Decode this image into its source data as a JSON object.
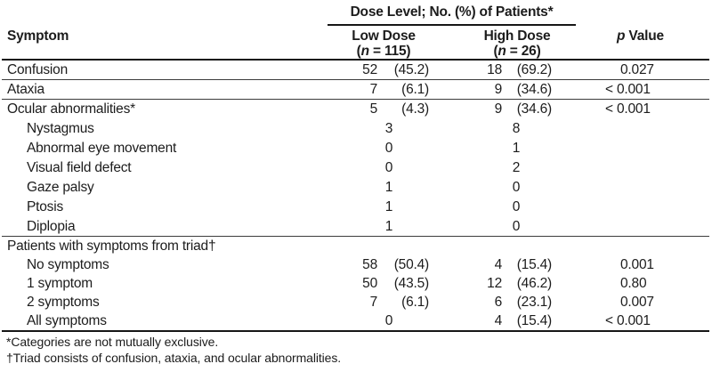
{
  "table": {
    "spanner": "Dose Level; No. (%) of Patients*",
    "col_symptom": "Symptom",
    "low_header": {
      "line1": "Low Dose",
      "pre": "(",
      "var": "n",
      "post": " = 115)"
    },
    "high_header": {
      "line1": "High Dose",
      "pre": "(",
      "var": "n",
      "post": " = 26)"
    },
    "p_header": {
      "var": "p",
      "rest": " Value"
    },
    "rows": [
      {
        "label": "Confusion",
        "low_count": "52",
        "low_pct": "(45.2)",
        "high_count": "18",
        "high_pct": "(69.2)",
        "p": "0.027"
      },
      {
        "label": "Ataxia",
        "low_count": "7",
        "low_pct": "(6.1)",
        "high_count": "9",
        "high_pct": "(34.6)",
        "p": "< 0.001"
      },
      {
        "label": "Ocular abnormalities*",
        "low_count": "5",
        "low_pct": "(4.3)",
        "high_count": "9",
        "high_pct": "(34.6)",
        "p": "< 0.001"
      },
      {
        "label": "Nystagmus",
        "low_count": "3",
        "high_count": "8"
      },
      {
        "label": "Abnormal eye movement",
        "low_count": "0",
        "high_count": "1"
      },
      {
        "label": "Visual field defect",
        "low_count": "0",
        "high_count": "2"
      },
      {
        "label": "Gaze palsy",
        "low_count": "1",
        "high_count": "0"
      },
      {
        "label": "Ptosis",
        "low_count": "1",
        "high_count": "0"
      },
      {
        "label": "Diplopia",
        "low_count": "1",
        "high_count": "0"
      },
      {
        "label": "Patients with symptoms from triad†"
      },
      {
        "label": "No symptoms",
        "low_count": "58",
        "low_pct": "(50.4)",
        "high_count": "4",
        "high_pct": "(15.4)",
        "p": "0.001"
      },
      {
        "label": "1 symptom",
        "low_count": "50",
        "low_pct": "(43.5)",
        "high_count": "12",
        "high_pct": "(46.2)",
        "p": "0.80"
      },
      {
        "label": "2 symptoms",
        "low_count": "7",
        "low_pct": "(6.1)",
        "high_count": "6",
        "high_pct": "(23.1)",
        "p": "0.007"
      },
      {
        "label": "All symptoms",
        "low_count": "0",
        "high_count": "4",
        "high_pct": "(15.4)",
        "p": "< 0.001"
      }
    ],
    "footnotes": [
      "*Categories are not mutually exclusive.",
      "†Triad consists of confusion, ataxia, and ocular abnormalities."
    ]
  }
}
